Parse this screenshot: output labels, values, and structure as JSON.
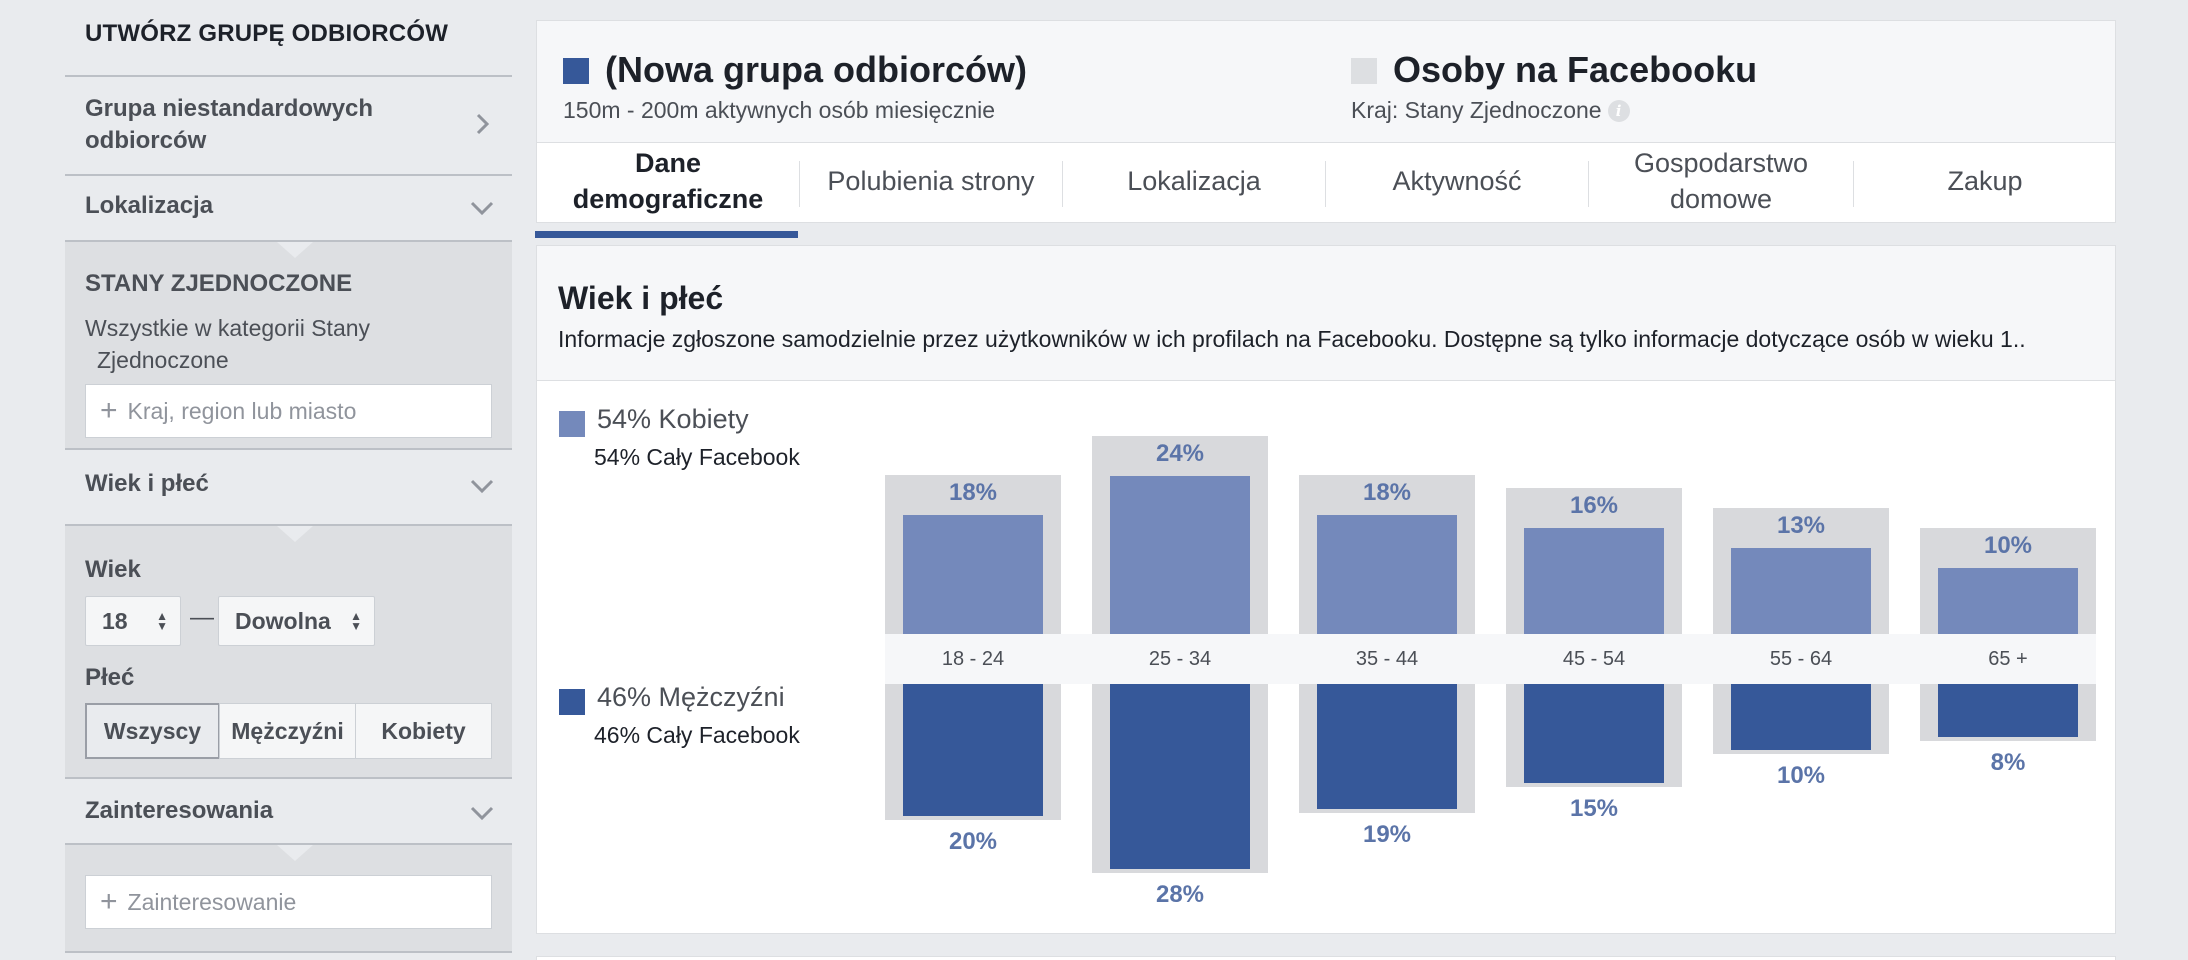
{
  "sidebar": {
    "title": "UTWÓRZ GRUPĘ ODBIORCÓW",
    "custom_audience": {
      "label_line1": "Grupa niestandardowych",
      "label_line2": "odbiorców",
      "icon": "chevron-right-icon"
    },
    "location": {
      "label": "Lokalizacja",
      "icon": "chevron-down-icon",
      "country": "STANY ZJEDNOCZONE",
      "desc_line1": "Wszystkie w kategorii Stany",
      "desc_line2": "Zjednoczone",
      "input_placeholder": "Kraj, region lub miasto"
    },
    "age_gender": {
      "label": "Wiek i płeć",
      "icon": "chevron-down-icon",
      "age_label": "Wiek",
      "age_from": "18",
      "age_dash": "—",
      "age_to": "Dowolna",
      "gender_label": "Płeć",
      "gender_options": [
        "Wszyscy",
        "Mężczyźni",
        "Kobiety"
      ],
      "gender_selected": "Wszyscy"
    },
    "interests": {
      "label": "Zainteresowania",
      "icon": "chevron-down-icon",
      "input_placeholder": "Zainteresowanie"
    }
  },
  "header": {
    "audience": {
      "name": "(Nowa grupa odbiorców)",
      "sub": "150m - 200m aktywnych osób miesięcznie",
      "color": "#365899"
    },
    "comparison": {
      "name": "Osoby na Facebooku",
      "sub": "Kraj: Stany Zjednoczone",
      "color": "#dddfe2"
    },
    "tabs": [
      {
        "line1": "Dane",
        "line2": "demograficzne"
      },
      {
        "line1": "Polubienia strony",
        "line2": ""
      },
      {
        "line1": "Lokalizacja",
        "line2": ""
      },
      {
        "line1": "Aktywność",
        "line2": ""
      },
      {
        "line1": "Gospodarstwo",
        "line2": "domowe"
      },
      {
        "line1": "Zakup",
        "line2": ""
      }
    ],
    "active_tab": "Dane demograficzne"
  },
  "section": {
    "title": "Wiek i płeć",
    "description": "Informacje zgłoszone samodzielnie przez użytkowników w ich profilach na Facebooku. Dostępne są tylko informacje dotyczące osób w wieku 1..",
    "women": {
      "label": "54% Kobiety",
      "sub": "54% Cały Facebook",
      "color": "#7489bb"
    },
    "men": {
      "label": "46% Mężczyźni",
      "sub": "46% Cały Facebook",
      "color": "#365899"
    }
  },
  "chart_data": {
    "type": "bar",
    "categories": [
      "18 - 24",
      "25 - 34",
      "35 - 44",
      "45 - 54",
      "55 - 64",
      "65 +"
    ],
    "series": [
      {
        "name": "Kobiety",
        "values": [
          18,
          24,
          18,
          16,
          13,
          10
        ],
        "labels": [
          "18%",
          "24%",
          "18%",
          "16%",
          "13%",
          "10%"
        ]
      },
      {
        "name": "Mężczyźni",
        "values": [
          20,
          28,
          19,
          15,
          10,
          8
        ],
        "labels": [
          "20%",
          "28%",
          "19%",
          "15%",
          "10%",
          "8%"
        ]
      }
    ],
    "comparison_bars": "gray background bars for Cały Facebook",
    "unit": "%"
  }
}
